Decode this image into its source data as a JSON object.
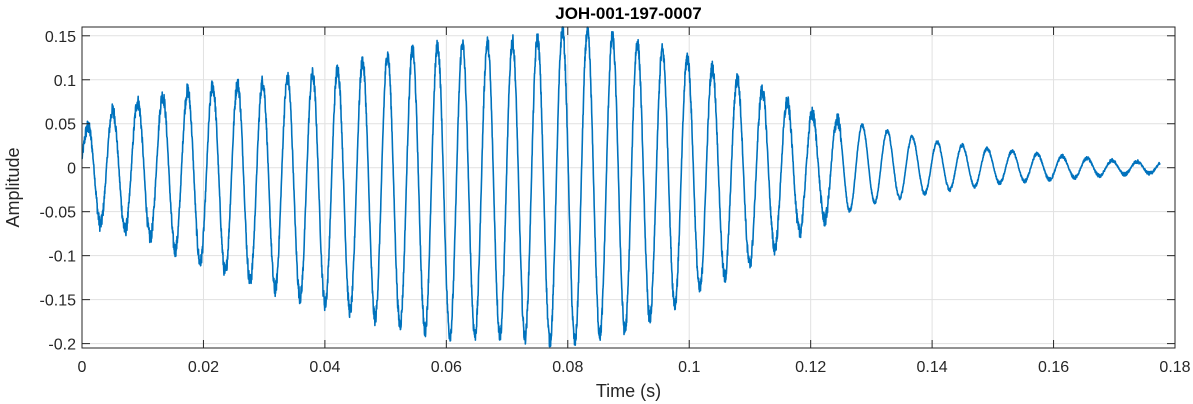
{
  "chart_data": {
    "type": "line",
    "title": "JOH-001-197-0007",
    "xlabel": "Time (s)",
    "ylabel": "Amplitude",
    "xlim": [
      0,
      0.18
    ],
    "ylim": [
      -0.205,
      0.16
    ],
    "x_ticks": [
      0,
      0.02,
      0.04,
      0.06,
      0.08,
      0.1,
      0.12,
      0.14,
      0.16,
      0.18
    ],
    "x_tick_labels": [
      "0",
      "0.02",
      "0.04",
      "0.06",
      "0.08",
      "0.1",
      "0.12",
      "0.14",
      "0.16",
      "0.18"
    ],
    "y_ticks": [
      -0.2,
      -0.15,
      -0.1,
      -0.05,
      0,
      0.05,
      0.1,
      0.15
    ],
    "y_tick_labels": [
      "-0.2",
      "-0.15",
      "-0.1",
      "-0.05",
      "0",
      "0.05",
      "0.1",
      "0.15"
    ],
    "grid": true,
    "series_color": "#0072BD",
    "signal": {
      "duration_s": 0.1775,
      "frequency_hz": 243,
      "envelope": {
        "t": [
          0,
          0.003,
          0.01,
          0.02,
          0.03,
          0.04,
          0.05,
          0.06,
          0.07,
          0.075,
          0.08,
          0.085,
          0.09,
          0.1,
          0.11,
          0.12,
          0.13,
          0.14,
          0.15,
          0.16,
          0.17,
          0.1775
        ],
        "upper": [
          0.04,
          0.06,
          0.077,
          0.092,
          0.098,
          0.108,
          0.128,
          0.14,
          0.143,
          0.147,
          0.158,
          0.152,
          0.145,
          0.125,
          0.095,
          0.062,
          0.046,
          0.03,
          0.021,
          0.014,
          0.008,
          0.006
        ],
        "lower": [
          -0.03,
          -0.065,
          -0.075,
          -0.11,
          -0.135,
          -0.155,
          -0.175,
          -0.19,
          -0.19,
          -0.195,
          -0.2,
          -0.19,
          -0.185,
          -0.145,
          -0.11,
          -0.065,
          -0.04,
          -0.028,
          -0.018,
          -0.013,
          -0.008,
          -0.006
        ]
      }
    }
  }
}
